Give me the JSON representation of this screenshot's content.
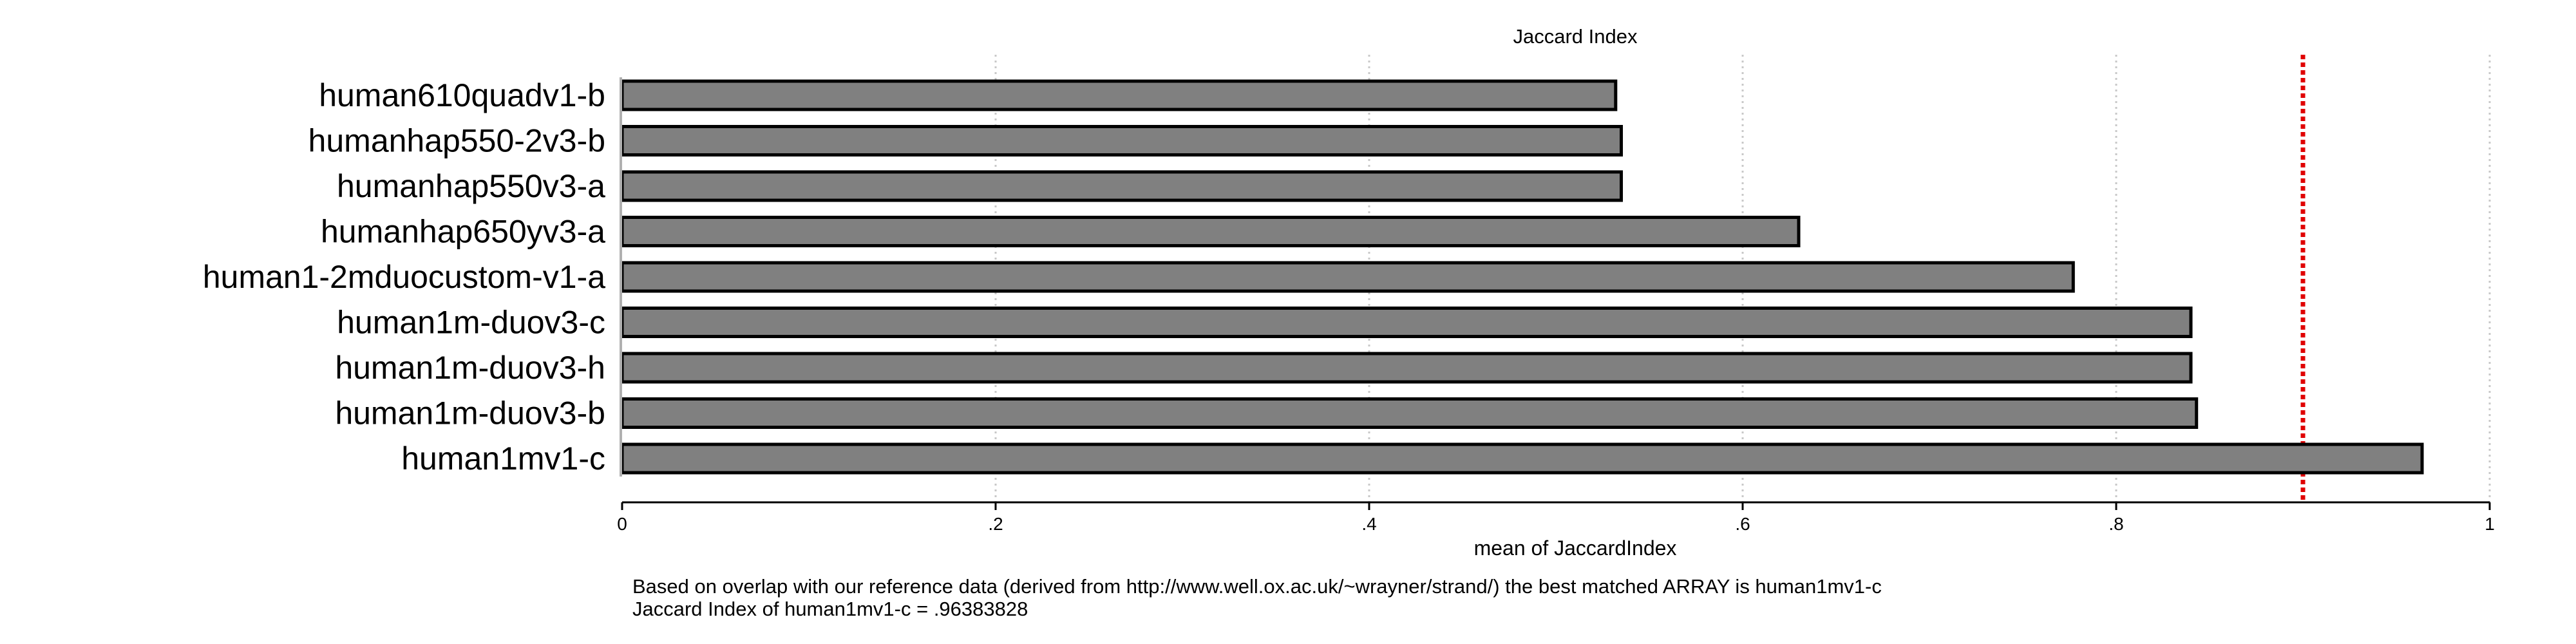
{
  "chart_data": {
    "type": "bar",
    "orientation": "horizontal",
    "title": "Jaccard Index",
    "xlabel": "mean of JaccardIndex",
    "ylabel": "",
    "xlim": [
      0,
      1
    ],
    "xticks": [
      0,
      0.2,
      0.4,
      0.6,
      0.8,
      1
    ],
    "xtick_labels": [
      "0",
      ".2",
      ".4",
      ".6",
      ".8",
      "1"
    ],
    "grid": true,
    "categories": [
      "human610quadv1-b",
      "humanhap550-2v3-b",
      "humanhap550v3-a",
      "humanhap650yv3-a",
      "human1-2mduocustom-v1-a",
      "human1m-duov3-c",
      "human1m-duov3-h",
      "human1m-duov3-b",
      "human1mv1-c"
    ],
    "values": [
      0.532,
      0.535,
      0.535,
      0.63,
      0.777,
      0.84,
      0.84,
      0.843,
      0.9638
    ],
    "reference_line": {
      "value": 0.9,
      "color": "#e00000",
      "style": "dotted"
    },
    "bar_color": "#808080",
    "bar_edge_color": "#000000",
    "notes": [
      "Based on overlap with our reference data (derived from http://www.well.ox.ac.uk/~wrayner/strand/) the best matched ARRAY is human1mv1-c",
      "Jaccard Index of  human1mv1-c = .96383828"
    ]
  }
}
